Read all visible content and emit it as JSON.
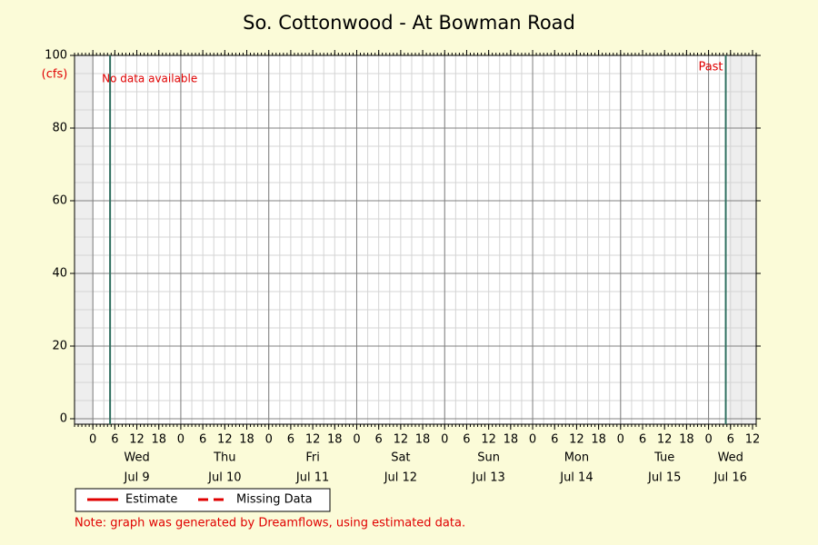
{
  "chart_data": {
    "type": "line",
    "title": "So. Cottonwood - At Bowman Road",
    "y_unit": "(cfs)",
    "ylim": [
      -1.5,
      100
    ],
    "yticks": [
      0,
      20,
      40,
      60,
      80,
      100
    ],
    "xlim": [
      -5,
      181
    ],
    "xticks": [
      0,
      6,
      12,
      18,
      {
        "value": 24,
        "label": "0"
      },
      {
        "value": 30,
        "label": "6"
      },
      {
        "value": 36,
        "label": "12"
      },
      {
        "value": 42,
        "label": "18"
      },
      {
        "value": 48,
        "label": "0"
      },
      {
        "value": 54,
        "label": "6"
      },
      {
        "value": 60,
        "label": "12"
      },
      {
        "value": 66,
        "label": "18"
      },
      {
        "value": 72,
        "label": "0"
      },
      {
        "value": 78,
        "label": "6"
      },
      {
        "value": 84,
        "label": "12"
      },
      {
        "value": 90,
        "label": "18"
      },
      {
        "value": 96,
        "label": "0"
      },
      {
        "value": 102,
        "label": "6"
      },
      {
        "value": 108,
        "label": "12"
      },
      {
        "value": 114,
        "label": "18"
      },
      {
        "value": 120,
        "label": "0"
      },
      {
        "value": 126,
        "label": "6"
      },
      {
        "value": 132,
        "label": "12"
      },
      {
        "value": 138,
        "label": "18"
      },
      {
        "value": 144,
        "label": "0"
      },
      {
        "value": 150,
        "label": "6"
      },
      {
        "value": 156,
        "label": "12"
      },
      {
        "value": 162,
        "label": "18"
      },
      {
        "value": 168,
        "label": "0"
      },
      {
        "value": 174,
        "label": "6"
      },
      {
        "value": 180,
        "label": "12"
      }
    ],
    "day_labels": [
      {
        "value": 12,
        "weekday": "Wed",
        "date": "Jul 9"
      },
      {
        "value": 36,
        "weekday": "Thu",
        "date": "Jul 10"
      },
      {
        "value": 60,
        "weekday": "Fri",
        "date": "Jul 11"
      },
      {
        "value": 84,
        "weekday": "Sat",
        "date": "Jul 12"
      },
      {
        "value": 108,
        "weekday": "Sun",
        "date": "Jul 13"
      },
      {
        "value": 132,
        "weekday": "Mon",
        "date": "Jul 14"
      },
      {
        "value": 156,
        "weekday": "Tue",
        "date": "Jul 15"
      },
      {
        "value": 174,
        "weekday": "Wed",
        "date": "Jul 16"
      }
    ],
    "shaded": [
      {
        "from": -5,
        "to": 0
      },
      {
        "from": 173.4,
        "to": 181
      }
    ],
    "markers": [
      {
        "x": 4.7,
        "color": "#2e6e5e"
      },
      {
        "x": 172.7,
        "color": "#2e6e5e"
      }
    ],
    "no_data_label": "No data available",
    "past_label": "Past",
    "grid": true,
    "x": [],
    "series": [
      {
        "name": "Estimate",
        "color": "#e00000",
        "dashed": false,
        "values": []
      },
      {
        "name": "Missing Data",
        "color": "#e00000",
        "dashed": true,
        "values": []
      }
    ],
    "note": "Note: graph was generated by Dreamflows, using estimated data."
  }
}
